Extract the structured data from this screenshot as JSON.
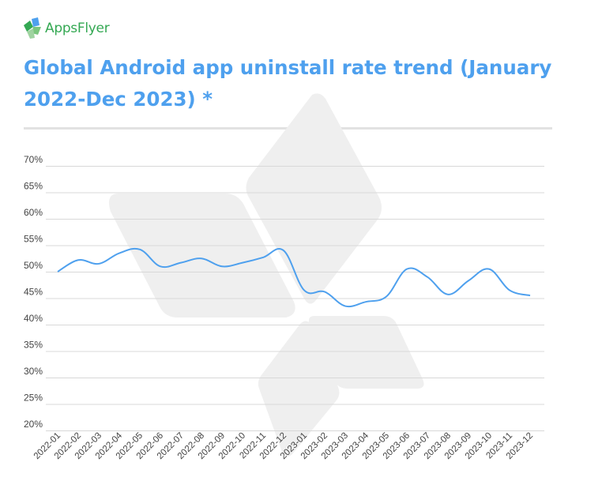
{
  "brand": {
    "name": "AppsFlyer",
    "color": "#34a853",
    "icon": "appsflyer-logo-icon"
  },
  "title": "Global Android app uninstall rate trend (January 2022-Dec 2023) *",
  "colors": {
    "title": "#4ea0ee",
    "line": "#4ea0ee",
    "grid": "#d8d8d8",
    "tick": "#444444",
    "watermark": "#efefef"
  },
  "chart_data": {
    "type": "line",
    "title": "Global Android app uninstall rate trend (January 2022-Dec 2023) *",
    "xlabel": "",
    "ylabel": "",
    "ylim": [
      20,
      70
    ],
    "yticks": [
      20,
      25,
      30,
      35,
      40,
      45,
      50,
      55,
      60,
      65,
      70
    ],
    "ytick_labels": [
      "20%",
      "25%",
      "30%",
      "35%",
      "40%",
      "45%",
      "50%",
      "55%",
      "60%",
      "65%",
      "70%"
    ],
    "grid": true,
    "legend": "none",
    "categories": [
      "2022-01",
      "2022-02",
      "2022-03",
      "2022-04",
      "2022-05",
      "2022-06",
      "2022-07",
      "2022-08",
      "2022-09",
      "2022-10",
      "2022-11",
      "2022-12",
      "2023-01",
      "2023-02",
      "2023-03",
      "2023-04",
      "2023-05",
      "2023-06",
      "2023-07",
      "2023-08",
      "2023-09",
      "2023-10",
      "2023-11",
      "2023-12"
    ],
    "series": [
      {
        "values": [
          50.0,
          52.2,
          51.5,
          53.5,
          54.2,
          51.0,
          51.7,
          52.5,
          51.0,
          51.7,
          52.7,
          54.0,
          46.5,
          46.2,
          43.5,
          44.3,
          45.3,
          50.5,
          49.0,
          45.7,
          48.3,
          50.5,
          46.5,
          45.5
        ]
      }
    ]
  }
}
